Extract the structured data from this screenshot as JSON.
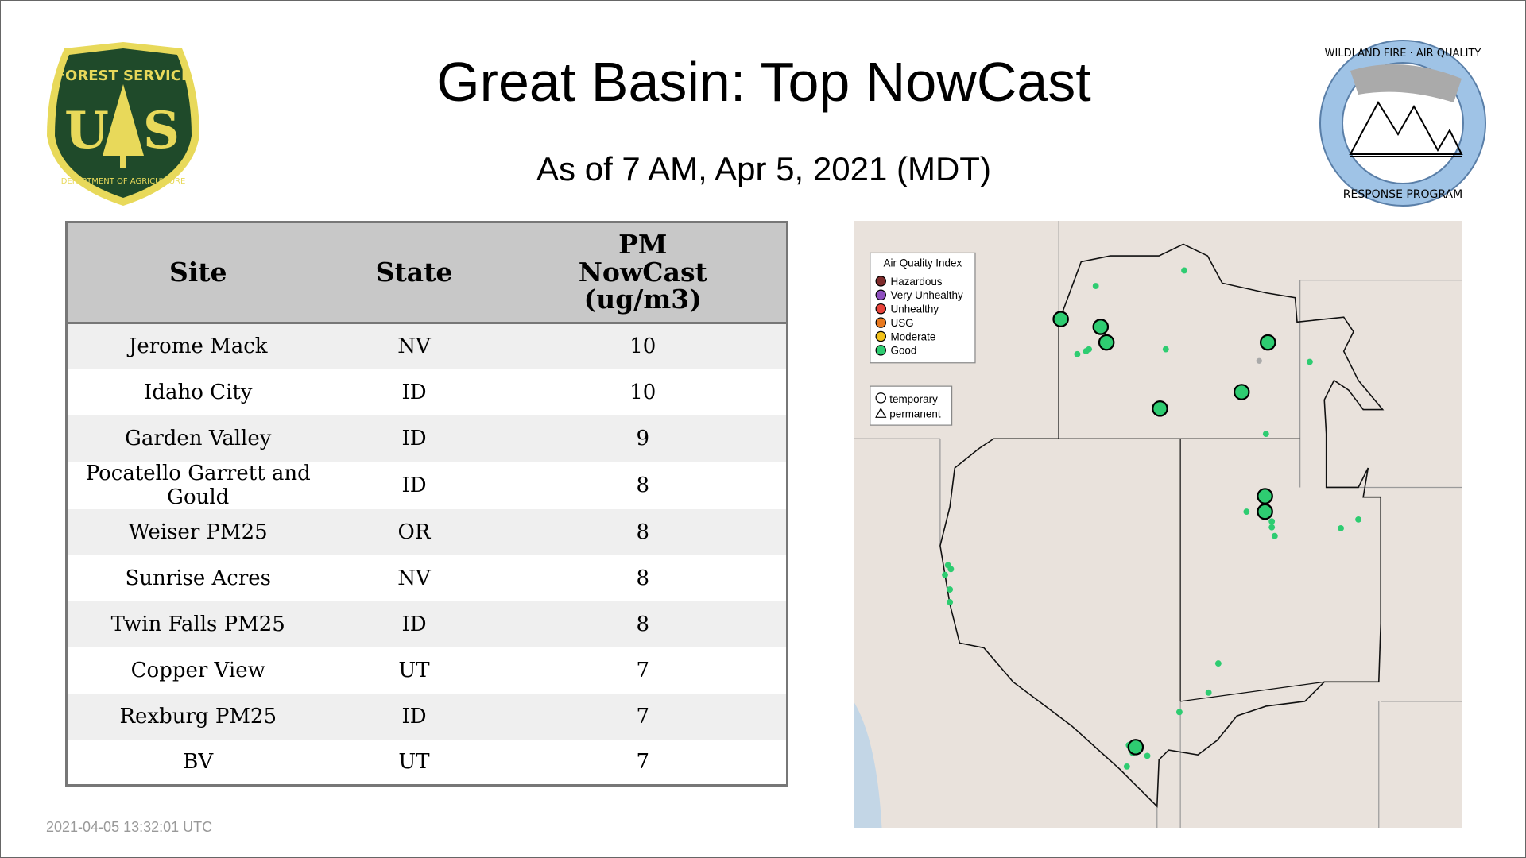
{
  "header": {
    "title": "Great Basin: Top NowCast",
    "subtitle": "As of  7 AM, Apr  5, 2021 (MDT)"
  },
  "logos": {
    "left": "FOREST SERVICE U S DEPARTMENT OF AGRICULTURE",
    "right": "WILDLAND FIRE · AIR QUALITY RESPONSE PROGRAM"
  },
  "table": {
    "columns": [
      "Site",
      "State",
      "PM NowCast (ug/m3)"
    ],
    "rows": [
      {
        "site": "Jerome Mack",
        "state": "NV",
        "value": "10"
      },
      {
        "site": "Idaho City",
        "state": "ID",
        "value": "10"
      },
      {
        "site": "Garden Valley",
        "state": "ID",
        "value": "9"
      },
      {
        "site": "Pocatello Garrett and Gould",
        "state": "ID",
        "value": "8"
      },
      {
        "site": "Weiser PM25",
        "state": "OR",
        "value": "8"
      },
      {
        "site": "Sunrise Acres",
        "state": "NV",
        "value": "8"
      },
      {
        "site": "Twin Falls PM25",
        "state": "ID",
        "value": "8"
      },
      {
        "site": "Copper View",
        "state": "UT",
        "value": "7"
      },
      {
        "site": "Rexburg PM25",
        "state": "ID",
        "value": "7"
      },
      {
        "site": "BV",
        "state": "UT",
        "value": "7"
      }
    ]
  },
  "map": {
    "legend_title": "Air Quality Index",
    "aqi": [
      {
        "label": "Hazardous",
        "color": "#7e2b2b"
      },
      {
        "label": "Very Unhealthy",
        "color": "#8e4fbf"
      },
      {
        "label": "Unhealthy",
        "color": "#e8433a"
      },
      {
        "label": "USG",
        "color": "#e8791f"
      },
      {
        "label": "Moderate",
        "color": "#f2c21a"
      },
      {
        "label": "Good",
        "color": "#2ecc71"
      }
    ],
    "shape_legend": [
      "temporary",
      "permanent"
    ]
  },
  "timestamp": "2021-04-05 13:32:01 UTC"
}
